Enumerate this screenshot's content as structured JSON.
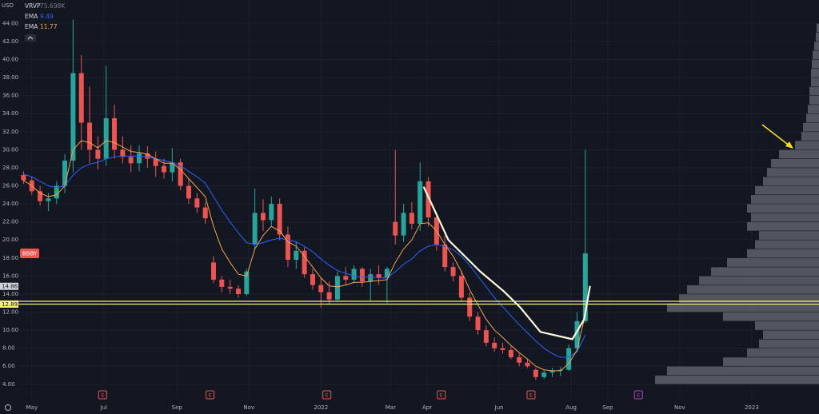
{
  "chart_data": {
    "type": "candlestick",
    "currency": "USD",
    "symbol": "BBBY",
    "xlim": [
      -10,
      667
    ],
    "xticks": [
      {
        "value": 0,
        "label": "May"
      },
      {
        "value": 61,
        "label": "Jul"
      },
      {
        "value": 123,
        "label": "Sep"
      },
      {
        "value": 184,
        "label": "Nov"
      },
      {
        "value": 245,
        "label": "2022"
      },
      {
        "value": 304,
        "label": "Mar"
      },
      {
        "value": 335,
        "label": "Apr"
      },
      {
        "value": 396,
        "label": "Jun"
      },
      {
        "value": 457,
        "label": "Aug"
      },
      {
        "value": 488,
        "label": "Sep"
      },
      {
        "value": 549,
        "label": "Nov"
      },
      {
        "value": 610,
        "label": "2023"
      }
    ],
    "ylim": [
      2.3,
      46.6
    ],
    "yticks": [
      {
        "value": 4,
        "label": "4.00"
      },
      {
        "value": 6,
        "label": "6.00"
      },
      {
        "value": 8,
        "label": "8.00"
      },
      {
        "value": 10,
        "label": "10.00"
      },
      {
        "value": 12,
        "label": "12.00"
      },
      {
        "value": 14,
        "label": "14.00"
      },
      {
        "value": 16,
        "label": "16.00"
      },
      {
        "value": 18,
        "label": "18.00"
      },
      {
        "value": 20,
        "label": "20.00"
      },
      {
        "value": 22,
        "label": "22.00"
      },
      {
        "value": 24,
        "label": "24.00"
      },
      {
        "value": 26,
        "label": "26.00"
      },
      {
        "value": 28,
        "label": "28.00"
      },
      {
        "value": 30,
        "label": "30.00"
      },
      {
        "value": 32,
        "label": "32.00"
      },
      {
        "value": 34,
        "label": "34.00"
      },
      {
        "value": 36,
        "label": "36.00"
      },
      {
        "value": 38,
        "label": "38.00"
      },
      {
        "value": 40,
        "label": "40.00"
      },
      {
        "value": 42,
        "label": "42.00"
      },
      {
        "value": 44,
        "label": "44.00"
      }
    ],
    "grid": true,
    "up_color": "#26a69a",
    "down_color": "#ef5350",
    "x": [
      -7,
      0,
      7,
      14,
      21,
      28,
      35,
      42,
      49,
      56,
      63,
      70,
      77,
      84,
      91,
      98,
      105,
      112,
      119,
      126,
      133,
      140,
      147,
      154,
      161,
      168,
      175,
      182,
      189,
      196,
      203,
      210,
      217,
      224,
      231,
      238,
      245,
      252,
      259,
      266,
      273,
      280,
      287,
      294,
      301,
      308,
      315,
      322,
      329,
      336,
      343,
      350,
      357,
      364,
      371,
      378,
      385,
      392,
      399,
      406,
      413,
      420,
      427,
      434,
      441,
      448,
      455,
      462,
      469
    ],
    "open": [
      27.2,
      26.6,
      25.4,
      24.3,
      24.6,
      26.0,
      28.8,
      38.5,
      33.0,
      30.0,
      29.0,
      33.5,
      30.0,
      29.2,
      28.5,
      29.6,
      29.0,
      28.2,
      27.5,
      28.6,
      26.0,
      24.6,
      23.6,
      17.5,
      15.6,
      14.8,
      14.6,
      14.0,
      19.5,
      23.0,
      22.2,
      24.0,
      20.6,
      17.8,
      18.8,
      16.2,
      15.0,
      14.2,
      13.4,
      16.0,
      15.6,
      16.8,
      15.4,
      16.2,
      15.8,
      22.0,
      20.5,
      23.0,
      21.8,
      26.5,
      22.5,
      19.5,
      17.0,
      16.0,
      13.6,
      11.5,
      10.0,
      8.6,
      8.0,
      7.8,
      7.0,
      6.4,
      5.6,
      4.8,
      5.3,
      5.5,
      5.6,
      8.0,
      11.0
    ],
    "high": [
      27.6,
      27.0,
      26.0,
      25.2,
      26.5,
      29.5,
      44.4,
      40.5,
      37.0,
      31.5,
      39.3,
      35.0,
      31.5,
      30.5,
      30.5,
      30.4,
      29.8,
      29.0,
      30.2,
      29.0,
      26.8,
      25.2,
      24.2,
      18.2,
      16.0,
      15.6,
      15.0,
      16.8,
      25.7,
      24.5,
      24.8,
      24.6,
      21.5,
      19.8,
      19.2,
      16.8,
      15.8,
      15.4,
      16.5,
      17.0,
      17.2,
      17.0,
      16.8,
      17.2,
      17.0,
      30.0,
      24.0,
      24.2,
      28.6,
      27.0,
      23.0,
      20.5,
      17.5,
      16.6,
      14.2,
      12.0,
      10.5,
      9.2,
      8.6,
      8.2,
      7.4,
      6.8,
      5.8,
      5.6,
      5.8,
      5.9,
      8.4,
      12.0,
      30.0
    ],
    "low": [
      26.2,
      25.0,
      23.8,
      23.2,
      24.0,
      25.2,
      27.5,
      30.0,
      28.5,
      27.8,
      28.2,
      29.0,
      28.5,
      27.5,
      27.6,
      28.0,
      27.0,
      26.8,
      26.5,
      25.5,
      24.0,
      23.0,
      21.8,
      15.2,
      14.2,
      14.0,
      13.6,
      13.8,
      19.0,
      21.0,
      21.5,
      20.0,
      17.0,
      16.8,
      15.8,
      14.5,
      12.5,
      12.8,
      13.2,
      15.0,
      15.2,
      14.8,
      13.2,
      15.0,
      13.0,
      19.5,
      19.8,
      21.2,
      21.0,
      21.5,
      18.8,
      16.5,
      15.4,
      13.2,
      11.0,
      9.5,
      8.2,
      7.6,
      7.4,
      6.8,
      6.0,
      5.8,
      4.5,
      4.6,
      4.8,
      4.9,
      5.5,
      7.8,
      10.8
    ],
    "close": [
      26.6,
      25.4,
      24.3,
      24.6,
      26.0,
      28.8,
      38.5,
      33.0,
      30.0,
      29.0,
      33.5,
      30.0,
      29.2,
      28.5,
      29.6,
      29.0,
      28.2,
      27.5,
      28.6,
      26.0,
      24.6,
      23.6,
      22.4,
      15.6,
      14.8,
      14.6,
      14.0,
      16.5,
      23.0,
      22.2,
      24.0,
      20.6,
      17.8,
      18.8,
      16.2,
      15.0,
      14.2,
      13.4,
      16.0,
      15.6,
      16.8,
      15.4,
      16.2,
      15.8,
      16.8,
      20.5,
      23.0,
      21.8,
      26.5,
      22.5,
      19.5,
      17.0,
      16.0,
      13.6,
      11.5,
      10.0,
      8.6,
      8.0,
      7.8,
      7.0,
      6.4,
      6.0,
      4.8,
      5.3,
      5.5,
      5.6,
      8.0,
      11.0,
      18.5
    ],
    "series": [
      {
        "name": "EMA",
        "color": "#2962ff",
        "values": [
          27.3,
          27.0,
          26.5,
          26.0,
          25.8,
          26.0,
          27.2,
          28.0,
          28.4,
          28.6,
          29.0,
          29.2,
          29.3,
          29.3,
          29.3,
          29.2,
          29.0,
          28.8,
          28.6,
          28.2,
          27.6,
          27.0,
          26.3,
          24.8,
          23.3,
          22.0,
          20.8,
          19.7,
          19.5,
          19.7,
          20.0,
          20.2,
          20.0,
          19.8,
          19.3,
          18.7,
          17.9,
          17.2,
          16.6,
          16.3,
          16.0,
          15.9,
          15.9,
          15.8,
          15.8,
          16.5,
          17.3,
          17.9,
          18.8,
          19.3,
          19.5,
          19.3,
          18.9,
          18.2,
          17.2,
          16.0,
          14.8,
          13.6,
          12.6,
          11.6,
          10.6,
          9.7,
          8.8,
          8.0,
          7.4,
          7.0,
          7.0,
          7.6,
          9.49
        ]
      },
      {
        "name": "EMA",
        "color": "#f7a24b",
        "values": [
          26.6,
          26.0,
          25.2,
          24.8,
          25.0,
          26.0,
          30.0,
          31.0,
          30.8,
          30.2,
          31.0,
          30.8,
          30.3,
          29.8,
          29.7,
          29.5,
          29.0,
          28.5,
          28.5,
          27.8,
          26.8,
          25.8,
          24.8,
          21.5,
          19.0,
          17.5,
          16.2,
          16.0,
          19.0,
          20.5,
          21.5,
          21.0,
          19.8,
          19.3,
          18.2,
          17.0,
          15.8,
          14.9,
          14.8,
          15.0,
          15.3,
          15.3,
          15.4,
          15.5,
          15.6,
          17.5,
          19.0,
          20.0,
          21.8,
          21.9,
          21.0,
          19.5,
          18.2,
          16.5,
          14.5,
          12.8,
          11.2,
          10.0,
          9.2,
          8.3,
          7.5,
          6.8,
          6.0,
          5.6,
          5.5,
          5.5,
          6.3,
          7.8,
          11.77
        ]
      }
    ],
    "volume_profile": {
      "name": "VRVP",
      "value_label": "75.698K",
      "color": "#5d606b",
      "xlim": [
        0,
        220
      ],
      "bins": [
        4,
        5,
        6,
        7,
        8,
        9,
        10,
        11,
        12,
        13,
        14,
        15,
        16,
        17,
        18,
        19,
        20,
        21,
        22,
        23,
        24,
        25,
        26,
        27,
        28,
        29,
        30,
        31,
        32,
        33,
        34,
        35,
        36,
        37,
        38,
        39,
        40,
        41,
        42,
        43,
        44
      ],
      "values": [
        205,
        190,
        120,
        90,
        75,
        70,
        80,
        120,
        190,
        175,
        165,
        150,
        135,
        115,
        90,
        80,
        75,
        90,
        85,
        90,
        85,
        80,
        70,
        65,
        60,
        50,
        30,
        22,
        20,
        16,
        14,
        12,
        12,
        10,
        10,
        9,
        8,
        6,
        4,
        3
      ]
    },
    "annotation_curve": {
      "color": "#fff8dc",
      "x": [
        332,
        353,
        380,
        400,
        414,
        431,
        458,
        468,
        473
      ],
      "y": [
        25.9,
        20.0,
        16.5,
        14.3,
        12.5,
        9.8,
        9.0,
        11.2,
        14.9
      ]
    },
    "horizontal_lines": {
      "color": "#f5f37a",
      "values": [
        13.2,
        12.89
      ]
    },
    "price_labels": [
      {
        "value": 14.86,
        "color": "#d1d4dc"
      },
      {
        "value": 12.89,
        "color": "#f5f37a"
      }
    ],
    "earnings": {
      "label": "E",
      "x": [
        60,
        151,
        250,
        347,
        423,
        514
      ],
      "colors": [
        "#ef5350",
        "#ef5350",
        "#ef5350",
        "#ef5350",
        "#ef5350",
        "#ab47bc"
      ]
    }
  }
}
